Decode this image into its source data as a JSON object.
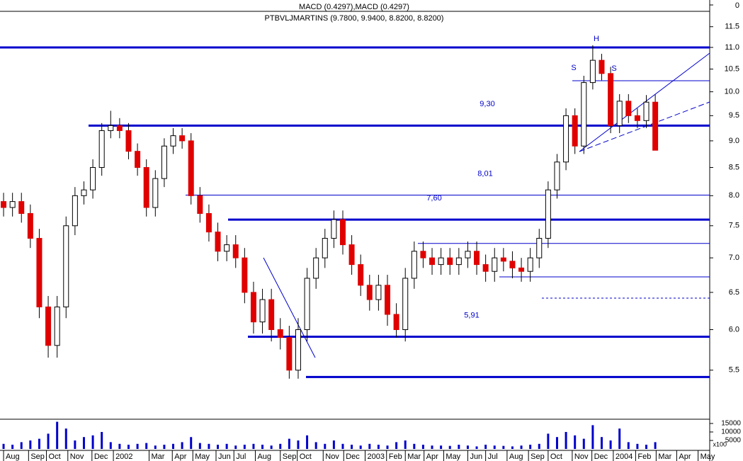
{
  "chart_data": {
    "type": "candlestick",
    "title": "MACD (0.4297),MACD (0.4297)",
    "subtitle": "PTBVLJMARTINS (9.7800, 9.9400, 8.8200, 8.8200)",
    "log_y": true,
    "ylim": [
      4.95,
      11.85
    ],
    "yticks": [
      5.5,
      {
        "value": 6,
        "label": "6.0"
      },
      6.5,
      {
        "value": 7,
        "label": "7.0"
      },
      7.5,
      {
        "value": 8,
        "label": "8.0"
      },
      8.5,
      {
        "value": 9,
        "label": "9.0"
      },
      9.5,
      {
        "value": 10,
        "label": "10.0"
      },
      10.5,
      {
        "value": 11,
        "label": "11.0"
      },
      11.5
    ],
    "top_ticks": [
      0
    ],
    "xlim": [
      -0.4,
      79.1
    ],
    "xticks": [
      {
        "value": 0,
        "label": "Aug"
      },
      {
        "value": 2.8,
        "label": "Sep"
      },
      {
        "value": 4.8,
        "label": "Oct"
      },
      {
        "value": 7.2,
        "label": "Nov"
      },
      {
        "value": 9.9,
        "label": "Dec"
      },
      {
        "value": 12.3,
        "label": "2002"
      },
      {
        "value": 16.3,
        "label": "Mar"
      },
      {
        "value": 18.9,
        "label": "Apr"
      },
      {
        "value": 21.2,
        "label": "May"
      },
      {
        "value": 23.8,
        "label": "Jun"
      },
      {
        "value": 25.8,
        "label": "Jul"
      },
      {
        "value": 28.2,
        "label": "Aug"
      },
      {
        "value": 31.0,
        "label": "Sep"
      },
      {
        "value": 32.9,
        "label": "Oct"
      },
      {
        "value": 35.8,
        "label": "Nov"
      },
      {
        "value": 38.1,
        "label": "Dec"
      },
      {
        "value": 40.5,
        "label": "2003"
      },
      {
        "value": 42.9,
        "label": "Feb"
      },
      {
        "value": 45.0,
        "label": "Mar"
      },
      {
        "value": 47.1,
        "label": "Apr"
      },
      {
        "value": 49.3,
        "label": "May"
      },
      {
        "value": 52.0,
        "label": "Jun"
      },
      {
        "value": 54.0,
        "label": "Jul"
      },
      {
        "value": 56.4,
        "label": "Aug"
      },
      {
        "value": 58.8,
        "label": "Sep"
      },
      {
        "value": 61.0,
        "label": "Oct"
      },
      {
        "value": 63.7,
        "label": "Nov"
      },
      {
        "value": 65.9,
        "label": "Dec"
      },
      {
        "value": 68.3,
        "label": "2004"
      },
      {
        "value": 70.8,
        "label": "Feb"
      },
      {
        "value": 73.1,
        "label": "Mar"
      },
      {
        "value": 75.4,
        "label": "Apr"
      },
      {
        "value": 77.8,
        "label": "May"
      }
    ],
    "x": [
      0,
      1,
      2,
      3,
      4,
      5,
      6,
      7,
      8,
      9,
      10,
      11,
      12,
      13,
      14,
      15,
      16,
      17,
      18,
      19,
      20,
      21,
      22,
      23,
      24,
      25,
      26,
      27,
      28,
      29,
      30,
      31,
      32,
      33,
      34,
      35,
      36,
      37,
      38,
      39,
      40,
      41,
      42,
      43,
      44,
      45,
      46,
      47,
      48,
      49,
      50,
      51,
      52,
      53,
      54,
      55,
      56,
      57,
      58,
      59,
      60,
      61,
      62,
      63,
      64,
      65,
      66,
      67,
      68,
      69,
      70,
      71,
      72,
      73
    ],
    "open": [
      7.9,
      7.8,
      7.9,
      7.7,
      7.3,
      6.3,
      5.8,
      6.3,
      7.5,
      8.0,
      8.1,
      8.5,
      9.2,
      9.3,
      9.2,
      8.8,
      8.5,
      7.8,
      8.3,
      8.9,
      9.1,
      9.0,
      8.0,
      7.7,
      7.4,
      7.1,
      7.2,
      7.0,
      6.5,
      6.1,
      6.4,
      6.0,
      5.9,
      5.5,
      6.0,
      6.7,
      7.0,
      7.3,
      7.6,
      7.2,
      6.9,
      6.6,
      6.4,
      6.6,
      6.2,
      6.0,
      6.7,
      7.1,
      7.0,
      6.9,
      7.0,
      6.9,
      7.0,
      7.1,
      6.9,
      6.8,
      7.0,
      6.95,
      6.85,
      6.8,
      7.0,
      7.3,
      8.1,
      8.6,
      9.5,
      8.9,
      10.2,
      10.7,
      10.4,
      9.3,
      9.8,
      9.5,
      9.4,
      9.78
    ],
    "high": [
      8.05,
      8.05,
      8.05,
      7.85,
      7.45,
      6.45,
      6.45,
      7.65,
      8.15,
      8.25,
      8.65,
      9.35,
      9.6,
      9.45,
      9.35,
      8.95,
      8.65,
      8.45,
      9.05,
      9.25,
      9.25,
      9.15,
      8.15,
      7.85,
      7.55,
      7.35,
      7.35,
      7.15,
      6.65,
      6.55,
      6.55,
      6.15,
      6.05,
      6.15,
      6.85,
      7.15,
      7.45,
      7.75,
      7.75,
      7.35,
      7.05,
      6.75,
      6.75,
      6.75,
      6.35,
      6.85,
      7.25,
      7.25,
      7.15,
      7.15,
      7.15,
      7.15,
      7.25,
      7.25,
      7.05,
      7.15,
      7.15,
      7.1,
      7.0,
      7.15,
      7.45,
      8.25,
      8.75,
      9.65,
      9.65,
      10.35,
      11.05,
      10.85,
      10.55,
      9.95,
      9.95,
      9.65,
      9.93,
      9.94
    ],
    "low": [
      7.65,
      7.65,
      7.55,
      7.15,
      6.15,
      5.65,
      5.65,
      6.15,
      7.35,
      7.85,
      7.95,
      8.35,
      9.05,
      9.05,
      8.65,
      8.35,
      7.65,
      7.65,
      8.15,
      8.75,
      8.85,
      7.85,
      7.55,
      7.25,
      6.95,
      6.95,
      6.85,
      6.35,
      5.95,
      5.95,
      5.85,
      5.75,
      5.4,
      5.4,
      5.85,
      6.55,
      6.85,
      7.15,
      7.05,
      6.75,
      6.45,
      6.25,
      6.25,
      6.05,
      5.9,
      5.85,
      6.55,
      6.85,
      6.75,
      6.75,
      6.75,
      6.75,
      6.85,
      6.75,
      6.65,
      6.65,
      6.8,
      6.7,
      6.65,
      6.65,
      6.85,
      7.15,
      7.95,
      8.45,
      8.75,
      8.75,
      10.05,
      10.25,
      9.15,
      9.15,
      9.35,
      9.25,
      9.25,
      8.82
    ],
    "close": [
      7.8,
      7.9,
      7.7,
      7.3,
      6.3,
      5.8,
      6.3,
      7.5,
      8.0,
      8.1,
      8.5,
      9.2,
      9.3,
      9.2,
      8.8,
      8.5,
      7.8,
      8.3,
      8.9,
      9.1,
      9.0,
      8.0,
      7.7,
      7.4,
      7.1,
      7.2,
      7.0,
      6.5,
      6.1,
      6.4,
      6.0,
      5.9,
      5.5,
      6.0,
      6.7,
      7.0,
      7.3,
      7.6,
      7.2,
      6.9,
      6.6,
      6.4,
      6.6,
      6.2,
      6.0,
      6.7,
      7.1,
      7.0,
      6.9,
      7.0,
      6.9,
      7.0,
      7.1,
      6.9,
      6.8,
      7.0,
      6.95,
      6.85,
      6.8,
      7.0,
      7.3,
      8.1,
      8.6,
      9.5,
      8.9,
      10.2,
      10.7,
      10.4,
      9.3,
      9.8,
      9.5,
      9.4,
      9.78,
      8.82
    ],
    "up_color": "#ffffff",
    "down_color": "#e00000",
    "volume": [
      3000,
      2500,
      4000,
      5000,
      6000,
      9000,
      16000,
      12000,
      5000,
      7000,
      8000,
      10000,
      4000,
      3000,
      2500,
      3000,
      3500,
      2000,
      2500,
      3000,
      4000,
      7000,
      3500,
      3000,
      2500,
      3000,
      2000,
      2500,
      3000,
      2500,
      2000,
      3000,
      6000,
      5000,
      8000,
      4000,
      3000,
      5000,
      3000,
      2500,
      2000,
      3000,
      2500,
      2000,
      4000,
      5000,
      3000,
      2500,
      2000,
      2000,
      1800,
      2500,
      2000,
      1500,
      2500,
      2000,
      1800,
      1500,
      2000,
      2500,
      3000,
      9000,
      7000,
      10000,
      8000,
      6000,
      14000,
      7000,
      5000,
      12000,
      4000,
      3000,
      2500,
      4000
    ],
    "volume_color": "#0000cc",
    "volume_ylim": [
      0,
      17500
    ],
    "volume_ticks": [
      5000,
      10000,
      15000
    ],
    "volume_unit": "x100",
    "levels": [
      11.0,
      10.24,
      9.3,
      8.01,
      7.6,
      7.22,
      6.72,
      6.42,
      5.91,
      5.42
    ],
    "level_color": "#0000cc",
    "level_labels": [
      {
        "value": 9.3,
        "label": "9,30"
      },
      {
        "value": 8.01,
        "label": "8,01"
      },
      {
        "value": 7.6,
        "label": "7,60"
      },
      {
        "value": 5.91,
        "label": "5,91"
      }
    ],
    "annotations": [
      "S",
      "H",
      "S"
    ]
  }
}
